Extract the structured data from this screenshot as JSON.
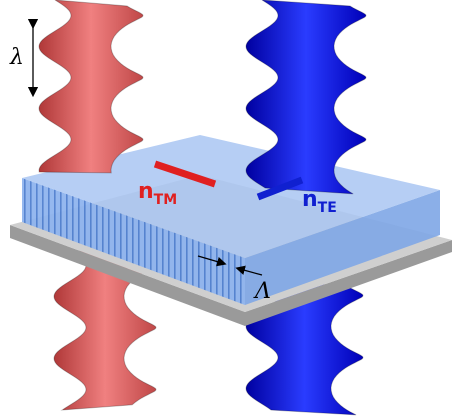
{
  "labels": {
    "wavelength": "λ",
    "n_tm": {
      "base": "n",
      "sub": "TM"
    },
    "n_te": {
      "base": "n",
      "sub": "TE"
    },
    "period": "Λ"
  }
}
